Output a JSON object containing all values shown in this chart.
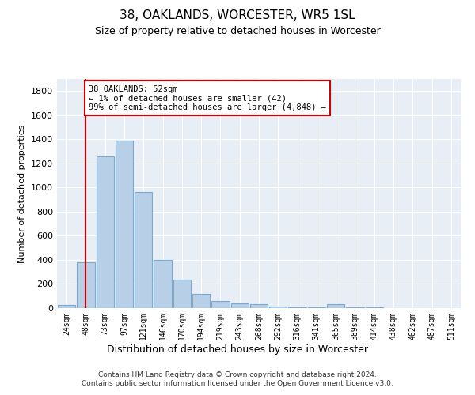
{
  "title": "38, OAKLANDS, WORCESTER, WR5 1SL",
  "subtitle": "Size of property relative to detached houses in Worcester",
  "xlabel": "Distribution of detached houses by size in Worcester",
  "ylabel": "Number of detached properties",
  "footnote": "Contains HM Land Registry data © Crown copyright and database right 2024.\nContains public sector information licensed under the Open Government Licence v3.0.",
  "bar_labels": [
    "24sqm",
    "48sqm",
    "73sqm",
    "97sqm",
    "121sqm",
    "146sqm",
    "170sqm",
    "194sqm",
    "219sqm",
    "243sqm",
    "268sqm",
    "292sqm",
    "316sqm",
    "341sqm",
    "365sqm",
    "389sqm",
    "414sqm",
    "438sqm",
    "462sqm",
    "487sqm",
    "511sqm"
  ],
  "bar_values": [
    25,
    380,
    1260,
    1390,
    960,
    400,
    235,
    115,
    60,
    40,
    30,
    10,
    5,
    5,
    30,
    5,
    5,
    2,
    2,
    2,
    2
  ],
  "bar_color": "#b8cfe8",
  "bar_edge_color": "#7aaad0",
  "bg_color": "#e8eef5",
  "grid_color": "#ffffff",
  "vline_x": 1,
  "vline_color": "#cc0000",
  "annotation_text": "38 OAKLANDS: 52sqm\n← 1% of detached houses are smaller (42)\n99% of semi-detached houses are larger (4,848) →",
  "annotation_box_color": "#ffffff",
  "annotation_box_edge": "#cc0000",
  "ylim": [
    0,
    1900
  ],
  "yticks": [
    0,
    200,
    400,
    600,
    800,
    1000,
    1200,
    1400,
    1600,
    1800
  ]
}
